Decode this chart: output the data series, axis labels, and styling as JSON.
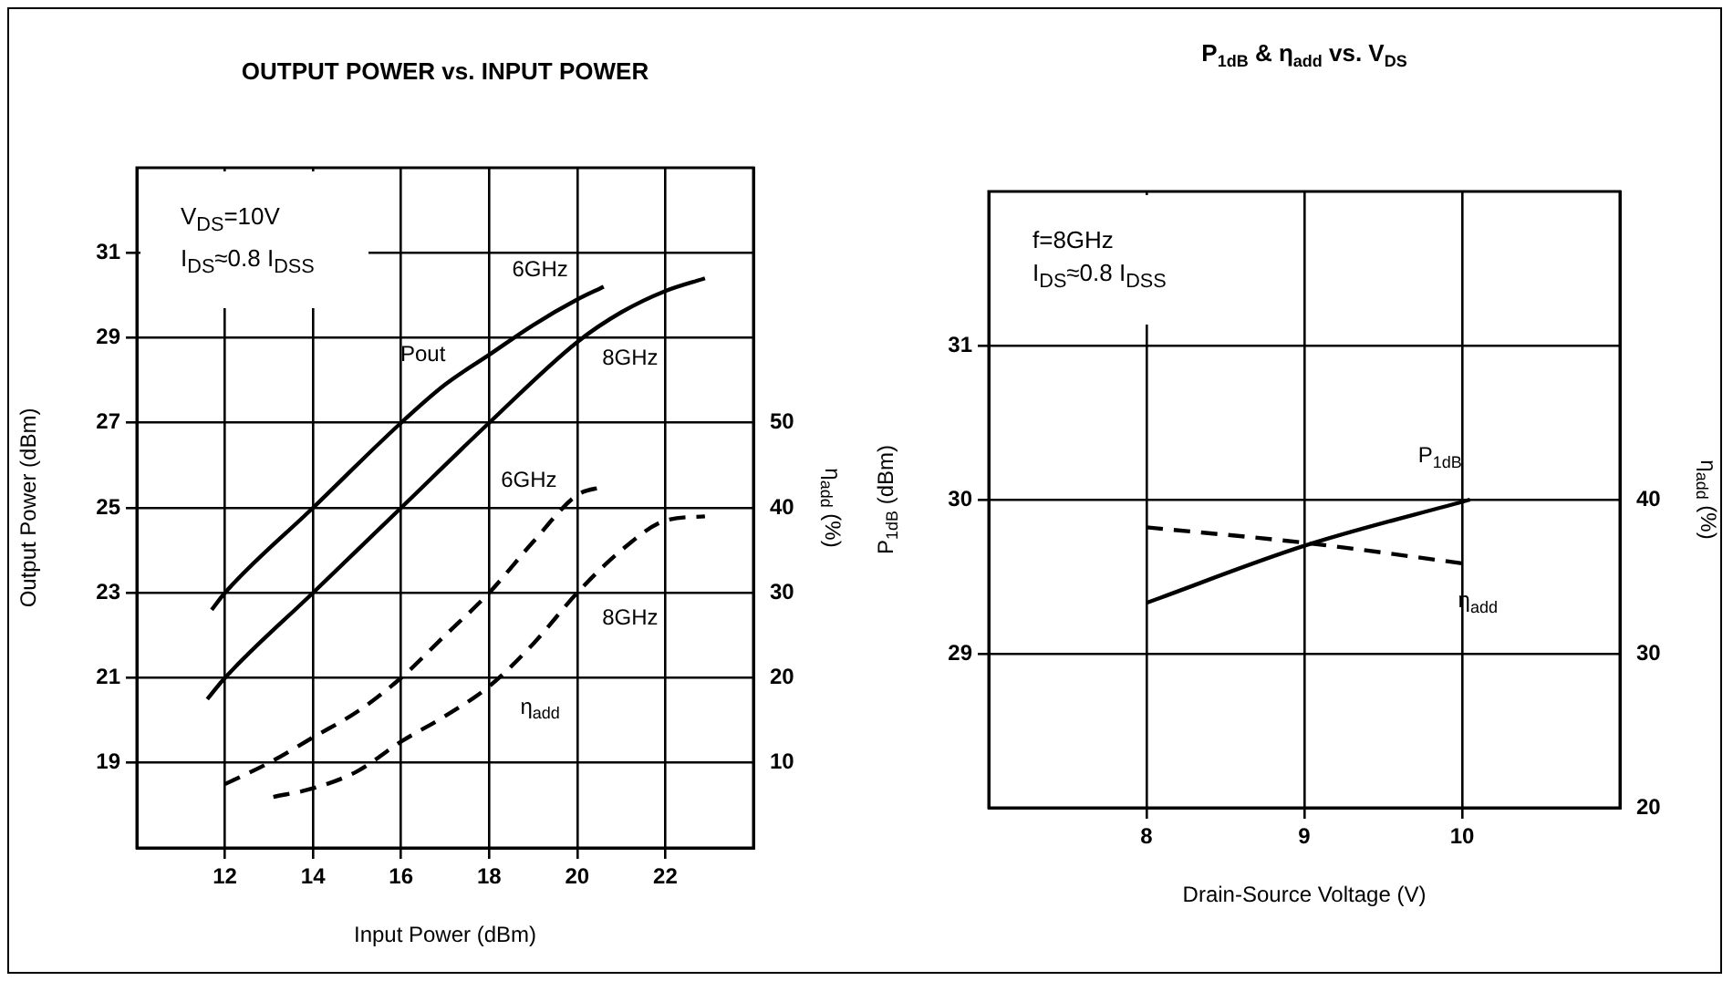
{
  "chart_data": [
    {
      "type": "line",
      "title": "OUTPUT POWER vs. INPUT POWER",
      "xlabel": "Input Power (dBm)",
      "ylabel": "Output Power (dBm)",
      "y2label": "η$_{add}$ (%)",
      "xlim": [
        10,
        24
      ],
      "xticks": [
        12,
        14,
        16,
        18,
        20,
        22
      ],
      "ylim": [
        17,
        33
      ],
      "yticks": [
        19,
        21,
        23,
        25,
        27,
        29,
        31
      ],
      "y2lim": [
        0,
        80
      ],
      "y2ticks": [
        10,
        20,
        30,
        40,
        50
      ],
      "grid": true,
      "legend": false,
      "marker": "none",
      "series": [
        {
          "name": "6GHz",
          "color": "#000000",
          "line_style": "solid",
          "x": [
            11.7,
            12,
            14,
            16,
            17,
            18,
            19,
            20,
            20.6
          ],
          "values": [
            22.6,
            23,
            25,
            27,
            27.9,
            28.6,
            29.3,
            29.9,
            30.2
          ]
        },
        {
          "name": "8GHz",
          "color": "#000000",
          "line_style": "solid",
          "x": [
            11.6,
            12,
            14,
            16,
            18,
            20,
            21,
            22,
            22.9
          ],
          "values": [
            20.5,
            21,
            23,
            25,
            27,
            28.9,
            29.6,
            30.1,
            30.4
          ]
        },
        {
          "name": "6GHz",
          "color": "#000000",
          "line_style": "dashed",
          "axis": "y2",
          "x": [
            12,
            13,
            14,
            15,
            16,
            17,
            18,
            19,
            20,
            20.6
          ],
          "values": [
            7.5,
            10,
            13,
            16,
            20,
            25,
            30,
            36,
            41.5,
            42.5
          ]
        },
        {
          "name": "8GHz",
          "color": "#000000",
          "line_style": "dashed",
          "axis": "y2",
          "x": [
            13.1,
            14,
            15,
            16,
            17,
            18,
            19,
            20,
            21,
            22,
            22.9
          ],
          "values": [
            6,
            7,
            9,
            12.5,
            15.5,
            19,
            24,
            30,
            35,
            38.5,
            39
          ]
        }
      ],
      "annotations": [
        "V$_{DS}$=10V",
        "I$_{DS}$≈0.8 I$_{DSS}$",
        "Pout",
        "η$_{add}$"
      ]
    },
    {
      "type": "line",
      "title": "P$_{1dB}$ & η$_{add}$ vs. V$_{DS}$",
      "xlabel": "Drain-Source Voltage (V)",
      "ylabel": "P$_{1dB}$ (dBm)",
      "y2label": "η$_{add}$ (%)",
      "xlim": [
        7,
        11
      ],
      "xticks": [
        8,
        9,
        10
      ],
      "ylim": [
        28,
        32
      ],
      "yticks": [
        29,
        30,
        31
      ],
      "y2lim": [
        20,
        60
      ],
      "y2ticks": [
        20,
        30,
        40
      ],
      "grid": true,
      "legend": false,
      "marker": "none",
      "series": [
        {
          "name": "P$_{1dB}$",
          "color": "#000000",
          "line_style": "solid",
          "x": [
            8,
            9,
            10.05
          ],
          "values": [
            29.33,
            29.7,
            30.0
          ]
        },
        {
          "name": "η$_{add}$",
          "color": "#000000",
          "line_style": "dashed",
          "axis": "y2",
          "x": [
            8,
            9,
            10.05
          ],
          "values": [
            38.2,
            37.2,
            35.8
          ]
        }
      ],
      "annotations": [
        "f=8GHz",
        "I$_{DS}$≈0.8 I$_{DSS}$"
      ]
    }
  ]
}
